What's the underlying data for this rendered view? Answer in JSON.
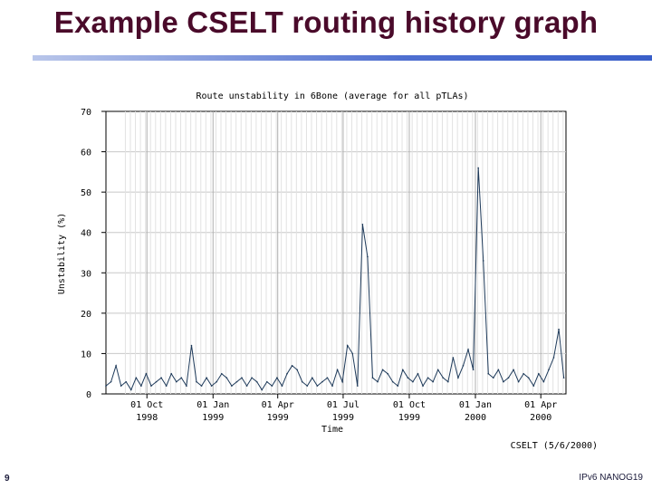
{
  "slide": {
    "title": "Example CSELT routing history graph",
    "number": "9",
    "footer": "IPv6 NANOG19"
  },
  "chart_data": {
    "type": "line",
    "title": "Route unstability in 6Bone (average for all pTLAs)",
    "xlabel": "Time",
    "ylabel": "Unstability (%)",
    "ylim": [
      0,
      70
    ],
    "yticks": [
      0,
      10,
      20,
      30,
      40,
      50,
      60,
      70
    ],
    "grid": true,
    "line_color": "#1e3a5a",
    "x_start": "1998-08-05",
    "x_end": "2000-05-06",
    "xtick_labels": [
      {
        "date": "1998-10-01",
        "line1": "01 Oct",
        "line2": "1998"
      },
      {
        "date": "1999-01-01",
        "line1": "01 Jan",
        "line2": "1999"
      },
      {
        "date": "1999-04-01",
        "line1": "01 Apr",
        "line2": "1999"
      },
      {
        "date": "1999-07-01",
        "line1": "01 Jul",
        "line2": "1999"
      },
      {
        "date": "1999-10-01",
        "line1": "01 Oct",
        "line2": "1999"
      },
      {
        "date": "2000-01-01",
        "line1": "01 Jan",
        "line2": "2000"
      },
      {
        "date": "2000-04-01",
        "line1": "01 Apr",
        "line2": "2000"
      }
    ],
    "credit": "CSELT (5/6/2000)",
    "series": [
      {
        "x": [
          "1998-08-05",
          "1998-08-12",
          "1998-08-19",
          "1998-08-26",
          "1998-09-02",
          "1998-09-09",
          "1998-09-16",
          "1998-09-23",
          "1998-09-30",
          "1998-10-07",
          "1998-10-14",
          "1998-10-21",
          "1998-10-28",
          "1998-11-04",
          "1998-11-11",
          "1998-11-18",
          "1998-11-25",
          "1998-12-02",
          "1998-12-09",
          "1998-12-16",
          "1998-12-23",
          "1998-12-30",
          "1999-01-06",
          "1999-01-13",
          "1999-01-20",
          "1999-01-27",
          "1999-02-03",
          "1999-02-10",
          "1999-02-17",
          "1999-02-24",
          "1999-03-03",
          "1999-03-10",
          "1999-03-17",
          "1999-03-24",
          "1999-03-31",
          "1999-04-07",
          "1999-04-14",
          "1999-04-21",
          "1999-04-28",
          "1999-05-05",
          "1999-05-12",
          "1999-05-19",
          "1999-05-26",
          "1999-06-02",
          "1999-06-09",
          "1999-06-16",
          "1999-06-23",
          "1999-06-30",
          "1999-07-07",
          "1999-07-14",
          "1999-07-21",
          "1999-07-28",
          "1999-08-04",
          "1999-08-11",
          "1999-08-18",
          "1999-08-25",
          "1999-09-01",
          "1999-09-08",
          "1999-09-15",
          "1999-09-22",
          "1999-09-29",
          "1999-10-06",
          "1999-10-13",
          "1999-10-20",
          "1999-10-27",
          "1999-11-03",
          "1999-11-10",
          "1999-11-17",
          "1999-11-24",
          "1999-12-01",
          "1999-12-08",
          "1999-12-15",
          "1999-12-22",
          "1999-12-29",
          "2000-01-05",
          "2000-01-12",
          "2000-01-19",
          "2000-01-26",
          "2000-02-02",
          "2000-02-09",
          "2000-02-16",
          "2000-02-23",
          "2000-03-01",
          "2000-03-08",
          "2000-03-15",
          "2000-03-22",
          "2000-03-29",
          "2000-04-05",
          "2000-04-12",
          "2000-04-19",
          "2000-04-26",
          "2000-05-03"
        ],
        "y": [
          2,
          3,
          7,
          2,
          3,
          1,
          4,
          2,
          5,
          2,
          3,
          4,
          2,
          5,
          3,
          4,
          2,
          12,
          3,
          2,
          4,
          2,
          3,
          5,
          4,
          2,
          3,
          4,
          2,
          4,
          3,
          1,
          3,
          2,
          4,
          2,
          5,
          7,
          6,
          3,
          2,
          4,
          2,
          3,
          4,
          2,
          6,
          3,
          12,
          10,
          2,
          42,
          34,
          4,
          3,
          6,
          5,
          3,
          2,
          6,
          4,
          3,
          5,
          2,
          4,
          3,
          6,
          4,
          3,
          9,
          4,
          7,
          11,
          6,
          56,
          33,
          5,
          4,
          6,
          3,
          4,
          6,
          3,
          5,
          4,
          2,
          5,
          3,
          6,
          9,
          16,
          4
        ]
      }
    ]
  }
}
